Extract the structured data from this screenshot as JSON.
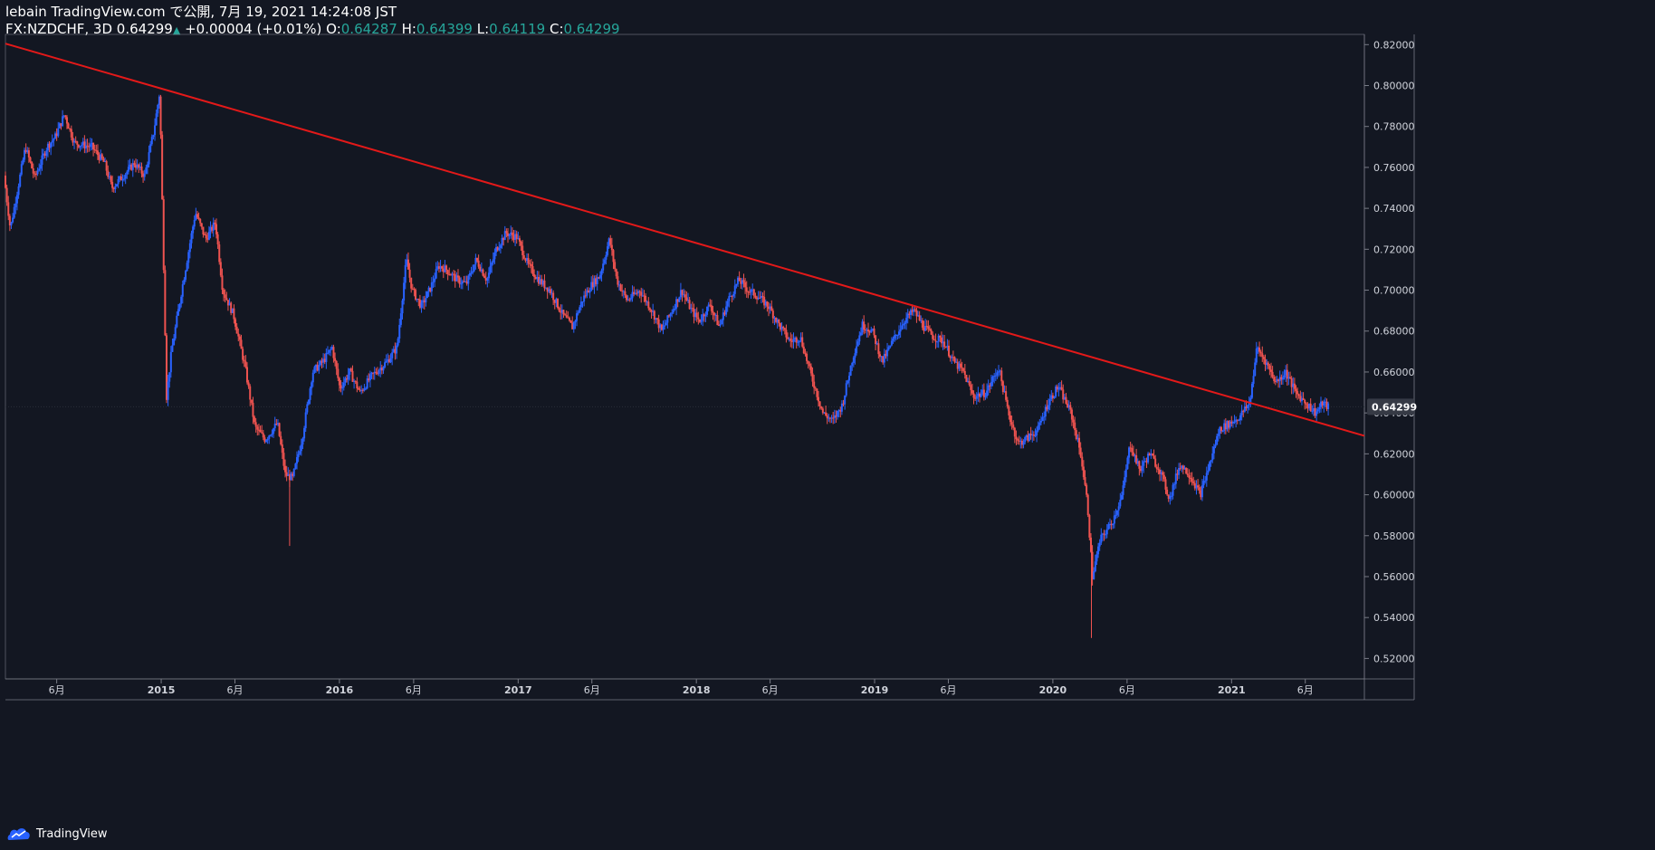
{
  "header": {
    "published": "lebain TradingView.com で公開, 7月 19, 2021 14:24:08 JST",
    "symbol": "FX:NZDCHF, 3D",
    "last": "0.64299",
    "change": "+0.00004 (+0.01%)",
    "o_label": "O:",
    "o_value": "0.64287",
    "h_label": "H:",
    "h_value": "0.64399",
    "l_label": "L:",
    "l_value": "0.64119",
    "c_label": "C:",
    "c_value": "0.64299"
  },
  "footer": {
    "brand": "TradingView"
  },
  "colors": {
    "background": "#131722",
    "up": "#2962ff",
    "down": "#ef5350",
    "trendline": "#e31919",
    "text": "#d1d4dc",
    "axis_line": "#787b86"
  },
  "chart_data": {
    "type": "candlestick",
    "symbol": "FX:NZDCHF",
    "interval": "3D",
    "last_price": "0.64299",
    "y_range": [
      0.51,
      0.825
    ],
    "x_range": [
      "2014-02-16",
      "2021-09-30"
    ],
    "y_ticks": [
      "0.82000",
      "0.80000",
      "0.78000",
      "0.76000",
      "0.74000",
      "0.72000",
      "0.70000",
      "0.68000",
      "0.66000",
      "0.64000",
      "0.62000",
      "0.60000",
      "0.58000",
      "0.56000",
      "0.54000",
      "0.52000"
    ],
    "x_ticks": [
      {
        "date": "2014-06-01",
        "label": "6月",
        "bold": false
      },
      {
        "date": "2015-01-01",
        "label": "2015",
        "bold": true
      },
      {
        "date": "2015-06-01",
        "label": "6月",
        "bold": false
      },
      {
        "date": "2016-01-01",
        "label": "2016",
        "bold": true
      },
      {
        "date": "2016-06-01",
        "label": "6月",
        "bold": false
      },
      {
        "date": "2017-01-01",
        "label": "2017",
        "bold": true
      },
      {
        "date": "2017-06-01",
        "label": "6月",
        "bold": false
      },
      {
        "date": "2018-01-01",
        "label": "2018",
        "bold": true
      },
      {
        "date": "2018-06-01",
        "label": "6月",
        "bold": false
      },
      {
        "date": "2019-01-01",
        "label": "2019",
        "bold": true
      },
      {
        "date": "2019-06-01",
        "label": "6月",
        "bold": false
      },
      {
        "date": "2020-01-01",
        "label": "2020",
        "bold": true
      },
      {
        "date": "2020-06-01",
        "label": "6月",
        "bold": false
      },
      {
        "date": "2021-01-01",
        "label": "2021",
        "bold": true
      },
      {
        "date": "2021-06-01",
        "label": "6月",
        "bold": false
      }
    ],
    "trendline": [
      {
        "date": "2014-02-16",
        "price": 0.8205
      },
      {
        "date": "2021-09-30",
        "price": 0.6288
      }
    ],
    "price_path": [
      [
        "2014-02-16",
        0.756
      ],
      [
        "2014-03-01",
        0.73
      ],
      [
        "2014-04-01",
        0.77
      ],
      [
        "2014-04-20",
        0.755
      ],
      [
        "2014-05-15",
        0.77
      ],
      [
        "2014-06-01",
        0.775
      ],
      [
        "2014-06-20",
        0.786
      ],
      [
        "2014-07-10",
        0.772
      ],
      [
        "2014-08-15",
        0.77
      ],
      [
        "2014-09-10",
        0.762
      ],
      [
        "2014-09-25",
        0.75
      ],
      [
        "2014-10-15",
        0.755
      ],
      [
        "2014-11-10",
        0.762
      ],
      [
        "2014-12-01",
        0.756
      ],
      [
        "2014-12-20",
        0.778
      ],
      [
        "2015-01-01",
        0.797
      ],
      [
        "2015-01-15",
        0.648
      ],
      [
        "2015-01-25",
        0.67
      ],
      [
        "2015-02-15",
        0.7
      ],
      [
        "2015-03-15",
        0.738
      ],
      [
        "2015-04-05",
        0.725
      ],
      [
        "2015-04-25",
        0.733
      ],
      [
        "2015-05-10",
        0.7
      ],
      [
        "2015-06-01",
        0.688
      ],
      [
        "2015-06-25",
        0.662
      ],
      [
        "2015-07-15",
        0.633
      ],
      [
        "2015-08-05",
        0.627
      ],
      [
        "2015-08-30",
        0.635
      ],
      [
        "2015-09-15",
        0.61
      ],
      [
        "2015-09-30",
        0.608
      ],
      [
        "2015-10-20",
        0.628
      ],
      [
        "2015-11-10",
        0.66
      ],
      [
        "2015-12-01",
        0.665
      ],
      [
        "2015-12-20",
        0.672
      ],
      [
        "2016-01-05",
        0.652
      ],
      [
        "2016-01-25",
        0.66
      ],
      [
        "2016-02-15",
        0.65
      ],
      [
        "2016-03-10",
        0.658
      ],
      [
        "2016-04-10",
        0.665
      ],
      [
        "2016-05-01",
        0.672
      ],
      [
        "2016-05-20",
        0.715
      ],
      [
        "2016-06-01",
        0.7
      ],
      [
        "2016-06-20",
        0.692
      ],
      [
        "2016-07-10",
        0.702
      ],
      [
        "2016-07-25",
        0.712
      ],
      [
        "2016-08-10",
        0.71
      ],
      [
        "2016-09-01",
        0.705
      ],
      [
        "2016-09-20",
        0.703
      ],
      [
        "2016-10-10",
        0.715
      ],
      [
        "2016-11-01",
        0.705
      ],
      [
        "2016-11-20",
        0.72
      ],
      [
        "2016-12-10",
        0.728
      ],
      [
        "2017-01-01",
        0.726
      ],
      [
        "2017-01-25",
        0.712
      ],
      [
        "2017-02-15",
        0.705
      ],
      [
        "2017-03-10",
        0.7
      ],
      [
        "2017-04-05",
        0.688
      ],
      [
        "2017-04-25",
        0.682
      ],
      [
        "2017-05-15",
        0.695
      ],
      [
        "2017-06-01",
        0.702
      ],
      [
        "2017-06-20",
        0.707
      ],
      [
        "2017-07-10",
        0.725
      ],
      [
        "2017-07-25",
        0.705
      ],
      [
        "2017-08-15",
        0.695
      ],
      [
        "2017-09-10",
        0.7
      ],
      [
        "2017-10-05",
        0.69
      ],
      [
        "2017-10-25",
        0.68
      ],
      [
        "2017-11-15",
        0.69
      ],
      [
        "2017-12-05",
        0.7
      ],
      [
        "2017-12-25",
        0.69
      ],
      [
        "2018-01-10",
        0.685
      ],
      [
        "2018-02-01",
        0.693
      ],
      [
        "2018-02-20",
        0.682
      ],
      [
        "2018-03-10",
        0.695
      ],
      [
        "2018-04-01",
        0.705
      ],
      [
        "2018-04-20",
        0.7
      ],
      [
        "2018-05-10",
        0.697
      ],
      [
        "2018-06-01",
        0.692
      ],
      [
        "2018-06-25",
        0.682
      ],
      [
        "2018-07-15",
        0.675
      ],
      [
        "2018-08-05",
        0.677
      ],
      [
        "2018-08-25",
        0.66
      ],
      [
        "2018-09-20",
        0.64
      ],
      [
        "2018-10-10",
        0.636
      ],
      [
        "2018-10-30",
        0.644
      ],
      [
        "2018-11-20",
        0.667
      ],
      [
        "2018-12-10",
        0.683
      ],
      [
        "2018-12-30",
        0.68
      ],
      [
        "2019-01-20",
        0.665
      ],
      [
        "2019-02-10",
        0.675
      ],
      [
        "2019-03-05",
        0.685
      ],
      [
        "2019-03-25",
        0.69
      ],
      [
        "2019-04-15",
        0.682
      ],
      [
        "2019-05-05",
        0.677
      ],
      [
        "2019-05-25",
        0.675
      ],
      [
        "2019-06-15",
        0.665
      ],
      [
        "2019-07-05",
        0.66
      ],
      [
        "2019-07-25",
        0.648
      ],
      [
        "2019-08-20",
        0.65
      ],
      [
        "2019-09-15",
        0.662
      ],
      [
        "2019-10-05",
        0.64
      ],
      [
        "2019-10-25",
        0.625
      ],
      [
        "2019-11-15",
        0.628
      ],
      [
        "2019-12-05",
        0.632
      ],
      [
        "2019-12-25",
        0.645
      ],
      [
        "2020-01-15",
        0.653
      ],
      [
        "2020-02-10",
        0.64
      ],
      [
        "2020-03-01",
        0.62
      ],
      [
        "2020-03-15",
        0.595
      ],
      [
        "2020-03-25",
        0.56
      ],
      [
        "2020-04-10",
        0.578
      ],
      [
        "2020-05-05",
        0.587
      ],
      [
        "2020-05-25",
        0.6
      ],
      [
        "2020-06-10",
        0.625
      ],
      [
        "2020-06-30",
        0.612
      ],
      [
        "2020-07-20",
        0.62
      ],
      [
        "2020-08-10",
        0.612
      ],
      [
        "2020-08-30",
        0.598
      ],
      [
        "2020-09-20",
        0.615
      ],
      [
        "2020-10-10",
        0.61
      ],
      [
        "2020-11-01",
        0.6
      ],
      [
        "2020-11-20",
        0.615
      ],
      [
        "2020-12-10",
        0.632
      ],
      [
        "2021-01-01",
        0.635
      ],
      [
        "2021-01-20",
        0.638
      ],
      [
        "2021-02-10",
        0.645
      ],
      [
        "2021-02-25",
        0.672
      ],
      [
        "2021-03-15",
        0.665
      ],
      [
        "2021-04-05",
        0.655
      ],
      [
        "2021-04-25",
        0.66
      ],
      [
        "2021-05-15",
        0.65
      ],
      [
        "2021-06-05",
        0.645
      ],
      [
        "2021-06-25",
        0.64
      ],
      [
        "2021-07-10",
        0.645
      ],
      [
        "2021-07-19",
        0.643
      ]
    ],
    "extreme_wicks": [
      {
        "date": "2015-09-21",
        "low": 0.575
      },
      {
        "date": "2020-03-20",
        "low": 0.53
      }
    ]
  }
}
